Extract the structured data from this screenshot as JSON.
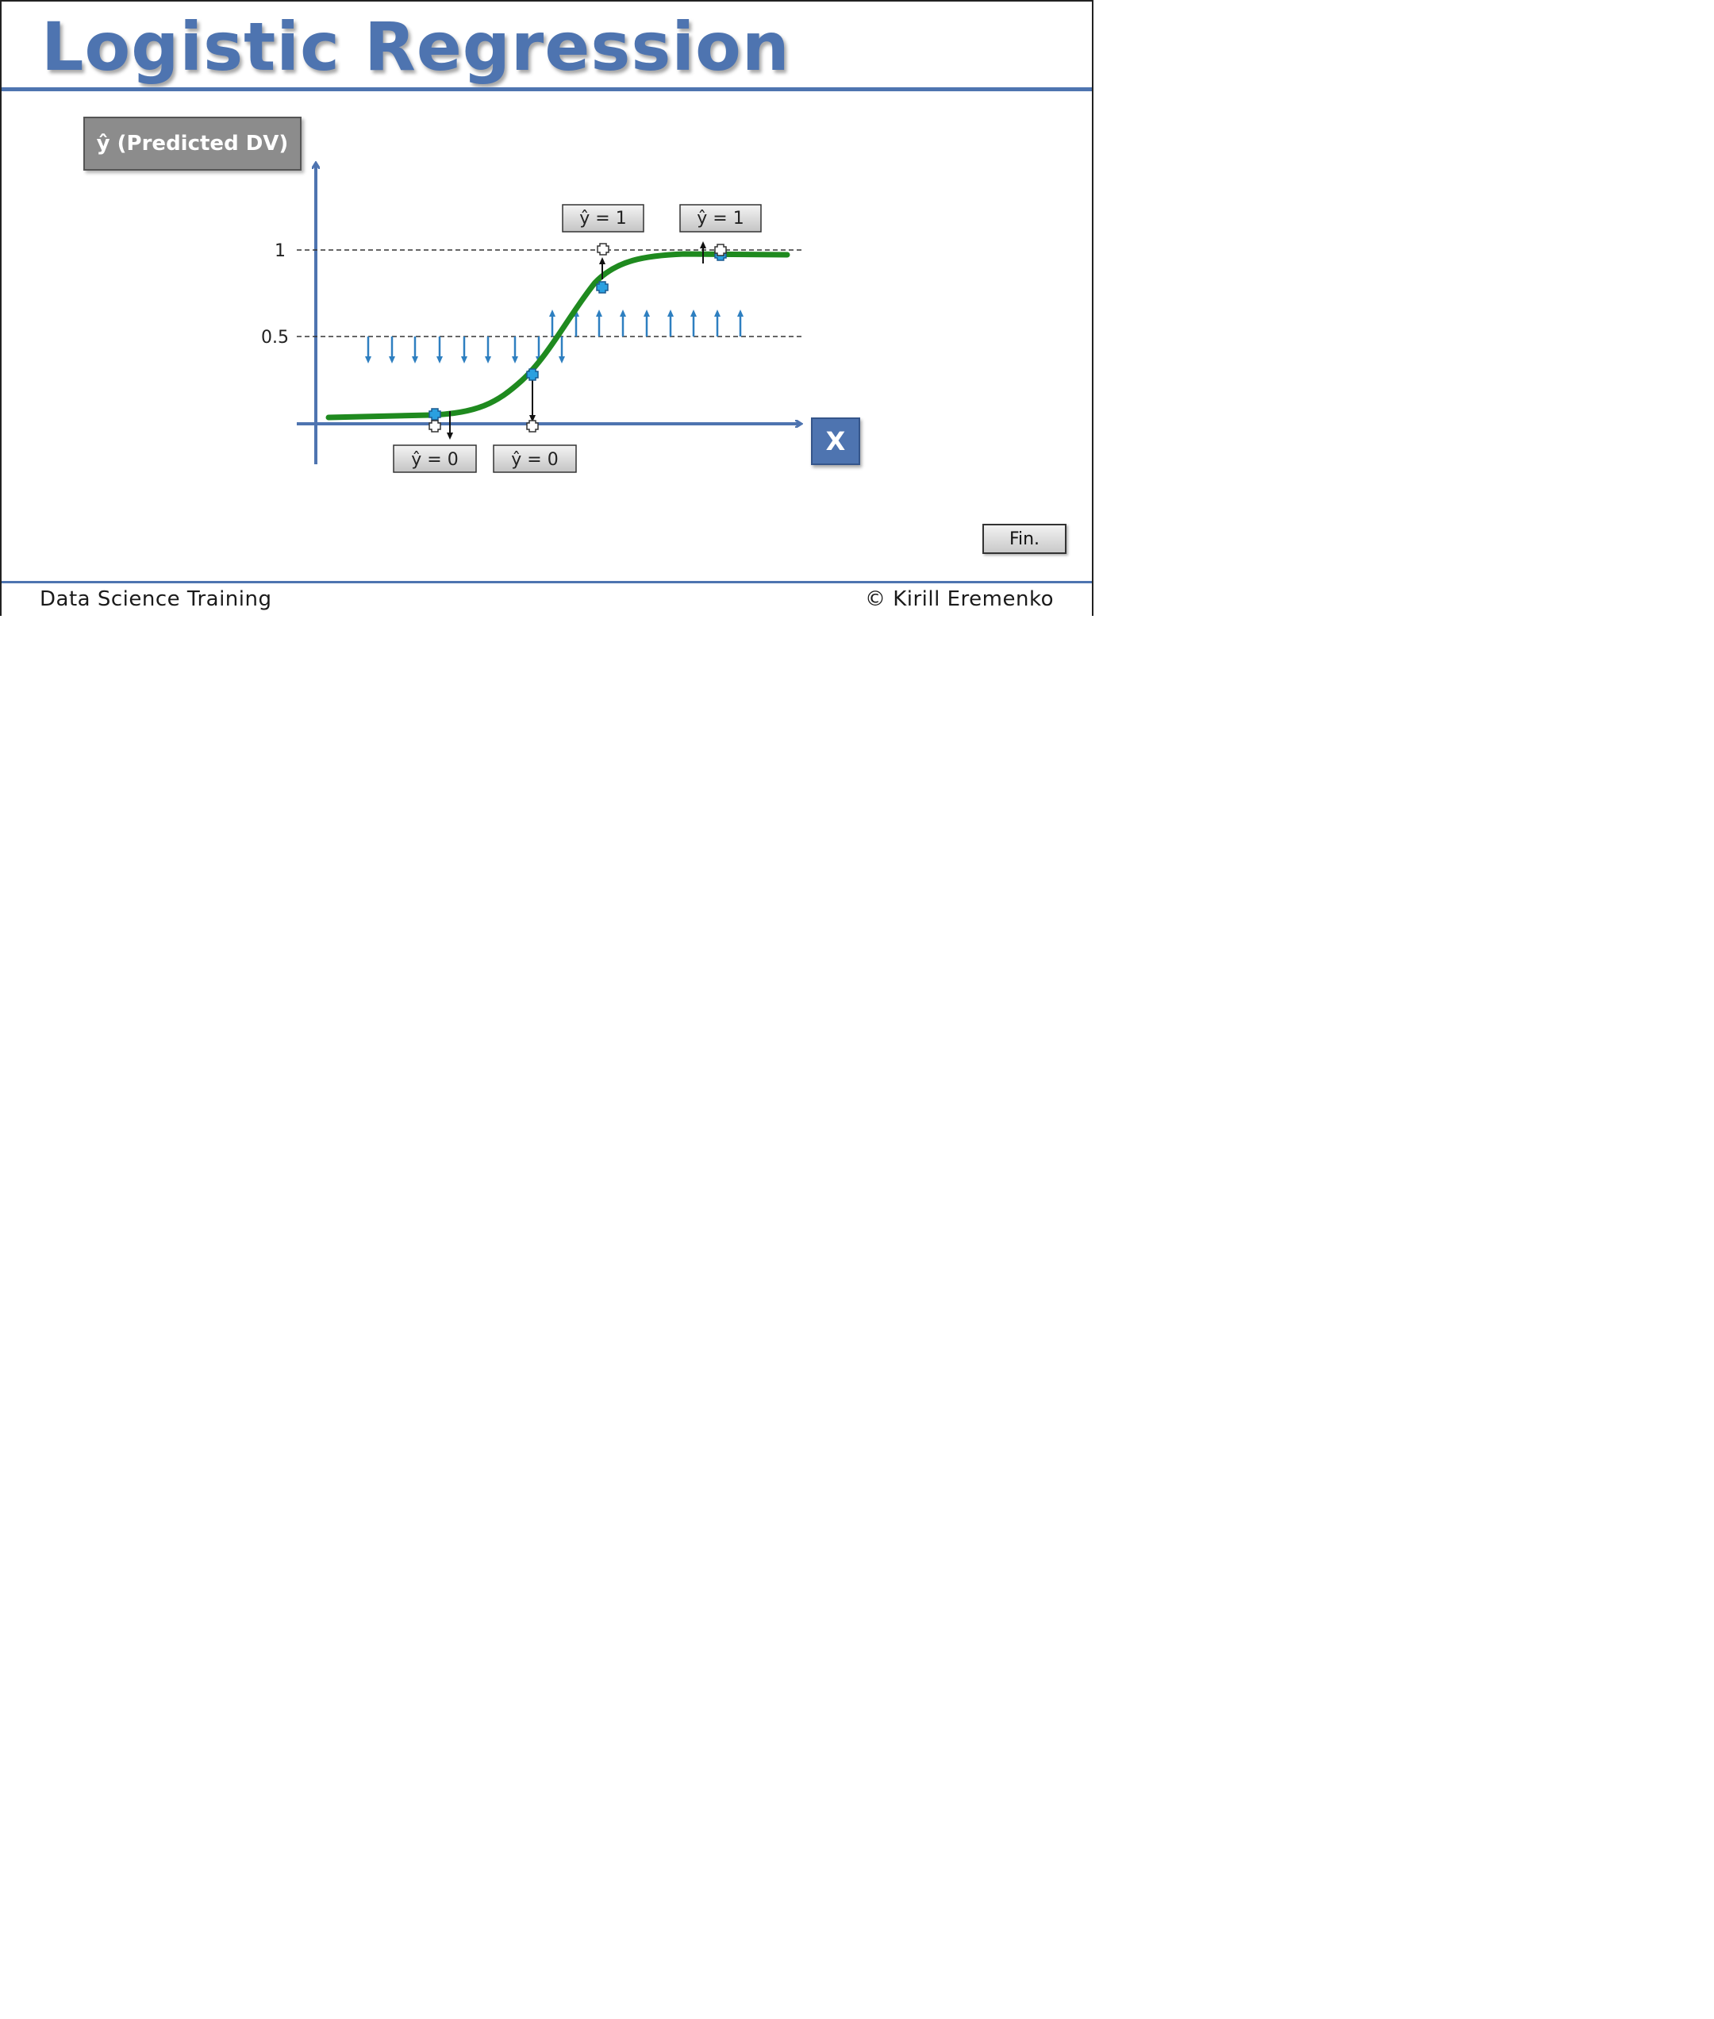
{
  "title": "Logistic Regression",
  "y_axis_label": "ŷ (Predicted DV)",
  "x_axis_label": "X",
  "y_ticks": [
    "1",
    "0.5"
  ],
  "prediction_labels": [
    "ŷ = 1",
    "ŷ = 1",
    "ŷ = 0",
    "ŷ = 0"
  ],
  "fin_button": "Fin.",
  "footer": {
    "left": "Data Science Training",
    "right": "© Kirill Eremenko"
  },
  "colors": {
    "accent": "#4e74b0",
    "curve": "#1f8a1f",
    "arrows": "#2e7fc0",
    "label_box": "#8c8c8c"
  }
}
